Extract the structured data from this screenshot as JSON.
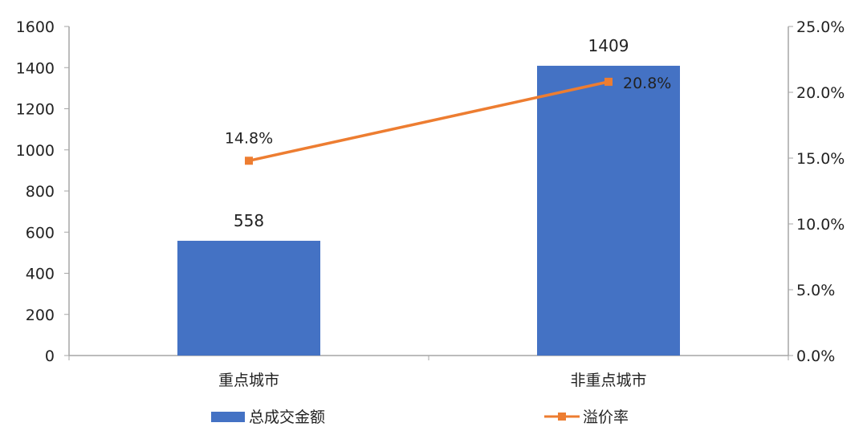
{
  "chart_data": {
    "type": "bar+line",
    "categories": [
      "重点城市",
      "非重点城市"
    ],
    "series": [
      {
        "name": "总成交金额",
        "type": "bar",
        "axis": "left",
        "values": [
          558,
          1409
        ],
        "labels": [
          "558",
          "1409"
        ],
        "color": "#4472C4"
      },
      {
        "name": "溢价率",
        "type": "line",
        "axis": "right",
        "values": [
          14.8,
          20.8
        ],
        "labels": [
          "14.8%",
          "20.8%"
        ],
        "color": "#ED7D31"
      }
    ],
    "y_left": {
      "ylim": [
        0,
        1600
      ],
      "ticks": [
        "0",
        "200",
        "400",
        "600",
        "800",
        "1000",
        "1200",
        "1400",
        "1600"
      ]
    },
    "y_right": {
      "ylim": [
        0,
        25
      ],
      "ticks": [
        "0.0%",
        "5.0%",
        "10.0%",
        "15.0%",
        "20.0%",
        "25.0%"
      ]
    },
    "grid": false,
    "legend": "bottom"
  }
}
